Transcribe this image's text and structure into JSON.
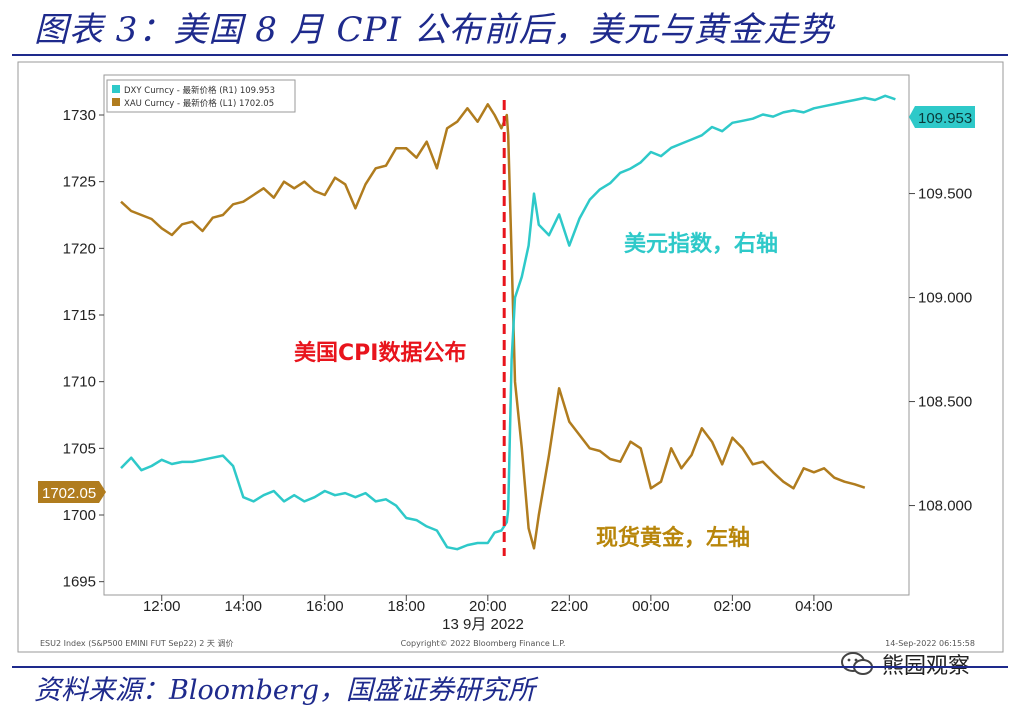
{
  "figure": {
    "title": "图表 3：美国 8 月 CPI 公布前后，美元与黄金走势",
    "source": "资料来源：Bloomberg，国盛证券研究所",
    "watermark": "熊园观察"
  },
  "chart_data": {
    "type": "line",
    "x_tick_labels": [
      "12:00",
      "14:00",
      "16:00",
      "18:00",
      "20:00",
      "22:00",
      "00:00",
      "02:00",
      "04:00"
    ],
    "x_date_label": "13 9月 2022",
    "y_left": {
      "ticks": [
        "1730",
        "1725",
        "1720",
        "1715",
        "1710",
        "1705",
        "1700",
        "1695"
      ],
      "range": [
        1694,
        1733
      ]
    },
    "y_right": {
      "ticks": [
        "109.500",
        "109.000",
        "108.500",
        "108.000"
      ],
      "range": [
        107.57,
        110.07
      ]
    },
    "legend": {
      "position": "top-left",
      "entries": [
        "DXY Curncy - 最新价格 (R1)   109.953",
        "XAU Curncy - 最新价格 (L1)   1702.05"
      ]
    },
    "last_value_labels": {
      "left": "1702.05",
      "right": "109.953"
    },
    "event": {
      "time": "20:30",
      "label": "美国CPI数据公布"
    },
    "series_labels": {
      "dxy": "美元指数，右轴",
      "xau": "现货黄金，左轴"
    },
    "footer": {
      "left": "ESU2 Index (S&P500 EMINI FUT  Sep22) 2 天  调价",
      "center": "Copyright© 2022 Bloomberg Finance L.P.",
      "right": "14-Sep-2022 06:15:58"
    },
    "colors": {
      "dxy": "#2ec9c9",
      "xau": "#b07c1e",
      "event_line": "#e8141c",
      "xau_label": "#b8860b"
    },
    "series": [
      {
        "name": "XAU Curncy",
        "axis": "left",
        "x": [
          "11:00",
          "11:15",
          "11:30",
          "11:45",
          "12:00",
          "12:15",
          "12:30",
          "12:45",
          "13:00",
          "13:15",
          "13:30",
          "13:45",
          "14:00",
          "14:15",
          "14:30",
          "14:45",
          "15:00",
          "15:15",
          "15:30",
          "15:45",
          "16:00",
          "16:15",
          "16:30",
          "16:45",
          "17:00",
          "17:15",
          "17:30",
          "17:45",
          "18:00",
          "18:15",
          "18:30",
          "18:45",
          "19:00",
          "19:15",
          "19:30",
          "19:45",
          "20:00",
          "20:10",
          "20:20",
          "20:28",
          "20:30",
          "20:35",
          "20:40",
          "20:50",
          "21:00",
          "21:08",
          "21:15",
          "21:30",
          "21:45",
          "22:00",
          "22:15",
          "22:30",
          "22:45",
          "23:00",
          "23:15",
          "23:30",
          "23:45",
          "00:00",
          "00:15",
          "00:30",
          "00:45",
          "01:00",
          "01:15",
          "01:30",
          "01:45",
          "02:00",
          "02:15",
          "02:30",
          "02:45",
          "03:00",
          "03:15",
          "03:30",
          "03:45",
          "04:00",
          "04:15",
          "04:30",
          "04:45",
          "05:00",
          "05:15"
        ],
        "y": [
          1723.5,
          1722.8,
          1722.5,
          1722.2,
          1721.5,
          1721.0,
          1721.8,
          1722.0,
          1721.3,
          1722.3,
          1722.5,
          1723.3,
          1723.5,
          1724.0,
          1724.5,
          1723.8,
          1725.0,
          1724.5,
          1725.0,
          1724.3,
          1724.0,
          1725.3,
          1724.8,
          1723.0,
          1724.8,
          1726.0,
          1726.2,
          1727.5,
          1727.5,
          1726.8,
          1728.0,
          1726.0,
          1729.0,
          1729.5,
          1730.5,
          1729.5,
          1730.8,
          1730.0,
          1729.0,
          1730.0,
          1728.5,
          1719.5,
          1710.0,
          1705.0,
          1699.0,
          1697.5,
          1700.0,
          1704.5,
          1709.5,
          1707.0,
          1706.0,
          1705.0,
          1704.8,
          1704.2,
          1704.0,
          1705.5,
          1705.0,
          1702.0,
          1702.5,
          1705.0,
          1703.5,
          1704.5,
          1706.5,
          1705.5,
          1703.8,
          1705.8,
          1705.0,
          1703.8,
          1704.0,
          1703.2,
          1702.5,
          1702.0,
          1703.5,
          1703.2,
          1703.5,
          1702.8,
          1702.5,
          1702.3,
          1702.05
        ]
      },
      {
        "name": "DXY Curncy",
        "axis": "right",
        "x": [
          "11:00",
          "11:15",
          "11:30",
          "11:45",
          "12:00",
          "12:15",
          "12:30",
          "12:45",
          "13:00",
          "13:15",
          "13:30",
          "13:45",
          "14:00",
          "14:15",
          "14:30",
          "14:45",
          "15:00",
          "15:15",
          "15:30",
          "15:45",
          "16:00",
          "16:15",
          "16:30",
          "16:45",
          "17:00",
          "17:15",
          "17:30",
          "17:45",
          "18:00",
          "18:15",
          "18:30",
          "18:45",
          "19:00",
          "19:15",
          "19:30",
          "19:45",
          "20:00",
          "20:10",
          "20:20",
          "20:28",
          "20:30",
          "20:35",
          "20:40",
          "20:50",
          "21:00",
          "21:08",
          "21:15",
          "21:30",
          "21:45",
          "22:00",
          "22:15",
          "22:30",
          "22:45",
          "23:00",
          "23:15",
          "23:30",
          "23:45",
          "00:00",
          "00:15",
          "00:30",
          "00:45",
          "01:00",
          "01:15",
          "01:30",
          "01:45",
          "02:00",
          "02:15",
          "02:30",
          "02:45",
          "03:00",
          "03:15",
          "03:30",
          "03:45",
          "04:00",
          "04:15",
          "04:30",
          "04:45",
          "05:00",
          "05:15",
          "05:30",
          "05:45",
          "06:00"
        ],
        "y": [
          108.18,
          108.23,
          108.17,
          108.19,
          108.22,
          108.2,
          108.21,
          108.21,
          108.22,
          108.23,
          108.24,
          108.19,
          108.04,
          108.02,
          108.05,
          108.07,
          108.02,
          108.05,
          108.02,
          108.04,
          108.07,
          108.05,
          108.06,
          108.04,
          108.06,
          108.02,
          108.03,
          108.0,
          107.94,
          107.93,
          107.9,
          107.88,
          107.8,
          107.79,
          107.81,
          107.82,
          107.82,
          107.87,
          107.88,
          107.92,
          107.98,
          108.7,
          109.0,
          109.1,
          109.25,
          109.5,
          109.35,
          109.3,
          109.4,
          109.25,
          109.38,
          109.47,
          109.52,
          109.55,
          109.6,
          109.62,
          109.65,
          109.7,
          109.68,
          109.72,
          109.74,
          109.76,
          109.78,
          109.82,
          109.8,
          109.84,
          109.85,
          109.86,
          109.88,
          109.87,
          109.89,
          109.9,
          109.89,
          109.91,
          109.92,
          109.93,
          109.94,
          109.95,
          109.96,
          109.95,
          109.97,
          109.953
        ]
      }
    ]
  }
}
